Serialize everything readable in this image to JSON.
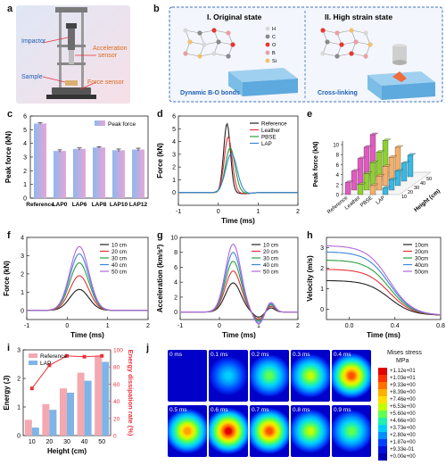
{
  "panel_a": {
    "label": "a",
    "impactor": "Impactor",
    "acc_sensor_1": "Acceleration",
    "acc_sensor_2": "sensor",
    "sample": "Sample",
    "force_sensor": "Force sensor"
  },
  "panel_b": {
    "label": "b",
    "title_left": "I. Original state",
    "title_right": "II. High strain state",
    "legend": [
      "H",
      "C",
      "O",
      "B",
      "Si"
    ],
    "legend_colors": [
      "#d8d8d8",
      "#8a8a8a",
      "#e8372c",
      "#e8a0a0",
      "#f0c070"
    ],
    "caption_left": "Dynamic B-O bonds",
    "caption_right": "Cross-linking"
  },
  "chart_c": {
    "label": "c",
    "type": "bar",
    "categories": [
      "Reference",
      "LAP0",
      "LAP6",
      "LAP8",
      "LAP10",
      "LAP12"
    ],
    "values": [
      5.45,
      3.45,
      3.6,
      3.7,
      3.5,
      3.55
    ],
    "errors": [
      0.05,
      0.08,
      0.07,
      0.06,
      0.09,
      0.1
    ],
    "ylabel": "Peak force (kN)",
    "ylim": [
      0,
      6
    ],
    "yticks": [
      "0",
      "1",
      "2",
      "3",
      "4",
      "5",
      "6"
    ],
    "legend": "Peak force"
  },
  "chart_d": {
    "label": "d",
    "type": "line",
    "xlabel": "Time (ms)",
    "ylabel": "Force (kN)",
    "xlim": [
      -1,
      2
    ],
    "ylim": [
      -1,
      6
    ],
    "xticks": [
      "-1",
      "0",
      "1",
      "2"
    ],
    "yticks": [
      "0",
      "1",
      "2",
      "3",
      "4",
      "5",
      "6"
    ],
    "series": [
      {
        "name": "Reference",
        "peak_t": 0.22,
        "peak": 5.4,
        "width": 0.12,
        "color": "#222222"
      },
      {
        "name": "Leather",
        "peak_t": 0.25,
        "peak": 4.35,
        "width": 0.14,
        "color": "#e8323b"
      },
      {
        "name": "PBSE",
        "peak_t": 0.3,
        "peak": 3.5,
        "width": 0.17,
        "color": "#2e9e3e"
      },
      {
        "name": "LAP",
        "peak_t": 0.33,
        "peak": 3.05,
        "width": 0.2,
        "color": "#3a86d8"
      }
    ]
  },
  "chart_e": {
    "label": "e",
    "type": "bar",
    "ylabel": "Peak force (kN)",
    "zlabel": "Height (cm)",
    "categories": [
      "Reference",
      "Leather",
      "PBSE",
      "LAP"
    ],
    "heights": [
      "10",
      "20",
      "30",
      "40",
      "50"
    ],
    "values": [
      [
        2.4,
        3.8,
        5.4,
        6.8,
        8.4
      ],
      [
        2.0,
        3.3,
        4.6,
        5.8,
        7.2
      ],
      [
        1.8,
        2.8,
        3.8,
        4.8,
        5.9
      ],
      [
        1.3,
        2.1,
        2.9,
        3.6,
        4.3
      ]
    ],
    "colors": [
      "#e05ac0",
      "#8fd030",
      "#f4b06a",
      "#39b8e2"
    ],
    "yticks": [
      "0",
      "2",
      "4",
      "6",
      "8",
      "10"
    ]
  },
  "chart_f": {
    "label": "f",
    "type": "line",
    "xlabel": "Time (ms)",
    "ylabel": "Force (kN)",
    "xlim": [
      -1,
      2
    ],
    "ylim": [
      -0.5,
      4
    ],
    "xticks": [
      "-1",
      "0",
      "1",
      "2"
    ],
    "yticks": [
      "0",
      "1",
      "2",
      "3",
      "4"
    ],
    "series": [
      {
        "name": "10 cm",
        "peak": 1.15,
        "color": "#222222"
      },
      {
        "name": "20 cm",
        "peak": 1.9,
        "color": "#e8323b"
      },
      {
        "name": "30 cm",
        "peak": 2.6,
        "color": "#2e9e3e"
      },
      {
        "name": "40 cm",
        "peak": 3.1,
        "color": "#3a86d8"
      },
      {
        "name": "50 cm",
        "peak": 3.5,
        "color": "#b266d8"
      }
    ]
  },
  "chart_g": {
    "label": "g",
    "type": "line",
    "xlabel": "Time (ms)",
    "ylabel": "Acceleration (km/s²)",
    "xlim": [
      -1,
      2
    ],
    "ylim": [
      -1,
      10
    ],
    "xticks": [
      "-1",
      "0",
      "1",
      "2"
    ],
    "yticks": [
      "0",
      "2",
      "4",
      "6",
      "8",
      "10"
    ],
    "series": [
      {
        "name": "10 cm",
        "peak": 3.9,
        "color": "#222222"
      },
      {
        "name": "20 cm",
        "peak": 5.5,
        "color": "#e8323b"
      },
      {
        "name": "30 cm",
        "peak": 6.8,
        "color": "#2e9e3e"
      },
      {
        "name": "40 cm",
        "peak": 8.0,
        "color": "#3a86d8"
      },
      {
        "name": "50 cm",
        "peak": 9.1,
        "color": "#b266d8"
      }
    ]
  },
  "chart_h": {
    "label": "h",
    "type": "line",
    "xlabel": "Time (ms)",
    "ylabel": "Velocity (m/s)",
    "xlim": [
      -0.2,
      0.8
    ],
    "ylim": [
      -0.5,
      3.5
    ],
    "xticks": [
      "0.0",
      "0.4",
      "0.8"
    ],
    "yticks": [
      "0",
      "1",
      "2",
      "3"
    ],
    "series": [
      {
        "name": "10cm",
        "v0": 1.4,
        "color": "#222222"
      },
      {
        "name": "20cm",
        "v0": 1.95,
        "color": "#e8323b"
      },
      {
        "name": "30cm",
        "v0": 2.4,
        "color": "#2e9e3e"
      },
      {
        "name": "40cm",
        "v0": 2.8,
        "color": "#3a86d8"
      },
      {
        "name": "50cm",
        "v0": 3.1,
        "color": "#b266d8"
      }
    ]
  },
  "chart_i": {
    "label": "i",
    "type": "bar",
    "xlabel": "Height (cm)",
    "ylabel": "Energy (J)",
    "y2label": "Energy dissipation rate (%)",
    "categories": [
      "10",
      "20",
      "30",
      "40",
      "50"
    ],
    "series": [
      {
        "name": "Reference",
        "values": [
          0.55,
          1.1,
          1.65,
          2.2,
          2.8
        ],
        "color": "#f4a8b0"
      },
      {
        "name": "LAP",
        "values": [
          0.28,
          0.9,
          1.5,
          1.92,
          2.58
        ],
        "color": "#7fb4e8"
      }
    ],
    "rate": [
      55,
      82,
      93,
      92,
      93
    ],
    "rate_color": "#e8323b",
    "ylim": [
      0,
      3
    ],
    "y2lim": [
      0,
      100
    ],
    "yticks": [
      "0",
      "1",
      "2",
      "3"
    ],
    "y2ticks": [
      "0",
      "20",
      "40",
      "60",
      "80",
      "100"
    ]
  },
  "panel_j": {
    "label": "j",
    "frames": [
      "0 ms",
      "0.1 ms",
      "0.2 ms",
      "0.3 ms",
      "0.4 ms",
      "0.5 ms",
      "0.6 ms",
      "0.7 ms",
      "0.8 ms",
      "0.9 ms"
    ],
    "intensity": [
      0.0,
      0.3,
      0.45,
      0.6,
      0.9,
      0.78,
      1.0,
      0.85,
      0.55,
      0.45
    ],
    "legend_title_1": "Mises stress",
    "legend_title_2": "MPa",
    "legend_values": [
      "+1.12e+01",
      "+1.03e+01",
      "+9.33e+00",
      "+8.39e+00",
      "+7.46e+00",
      "+6.53e+00",
      "+5.60e+00",
      "+4.66e+00",
      "+3.73e+00",
      "+2.80e+00",
      "+1.87e+00",
      "+9.33e-01",
      "+0.00e+00"
    ]
  }
}
